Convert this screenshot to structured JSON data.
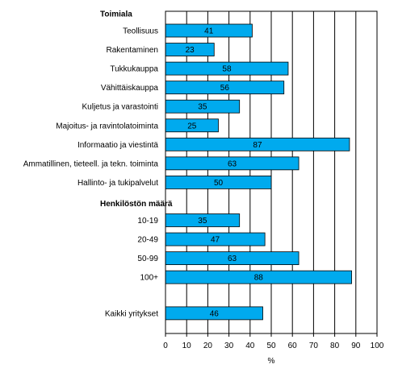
{
  "chart_data": {
    "type": "bar",
    "orientation": "horizontal",
    "xlabel": "%",
    "xlim": [
      0,
      100
    ],
    "xticks": [
      0,
      10,
      20,
      30,
      40,
      50,
      60,
      70,
      80,
      90,
      100
    ],
    "grid": "vertical lines",
    "bar_color": "#00aaee",
    "groups": [
      {
        "heading": "Toimiala",
        "categories": [
          "Teollisuus",
          "Rakentaminen",
          "Tukkukauppa",
          "Vähittäiskauppa",
          "Kuljetus ja varastointi",
          "Majoitus- ja ravintolatoiminta",
          "Informaatio ja viestintä",
          "Ammatillinen, tieteell. ja tekn. toiminta",
          "Hallinto- ja tukipalvelut"
        ],
        "values": [
          41,
          23,
          58,
          56,
          35,
          25,
          87,
          63,
          50
        ]
      },
      {
        "heading": "Henkilöstön määrä",
        "categories": [
          "10-19",
          "20-49",
          "50-99",
          "100+"
        ],
        "values": [
          35,
          47,
          63,
          88
        ]
      },
      {
        "heading": "",
        "categories": [
          "Kaikki yritykset"
        ],
        "values": [
          46
        ]
      }
    ]
  }
}
